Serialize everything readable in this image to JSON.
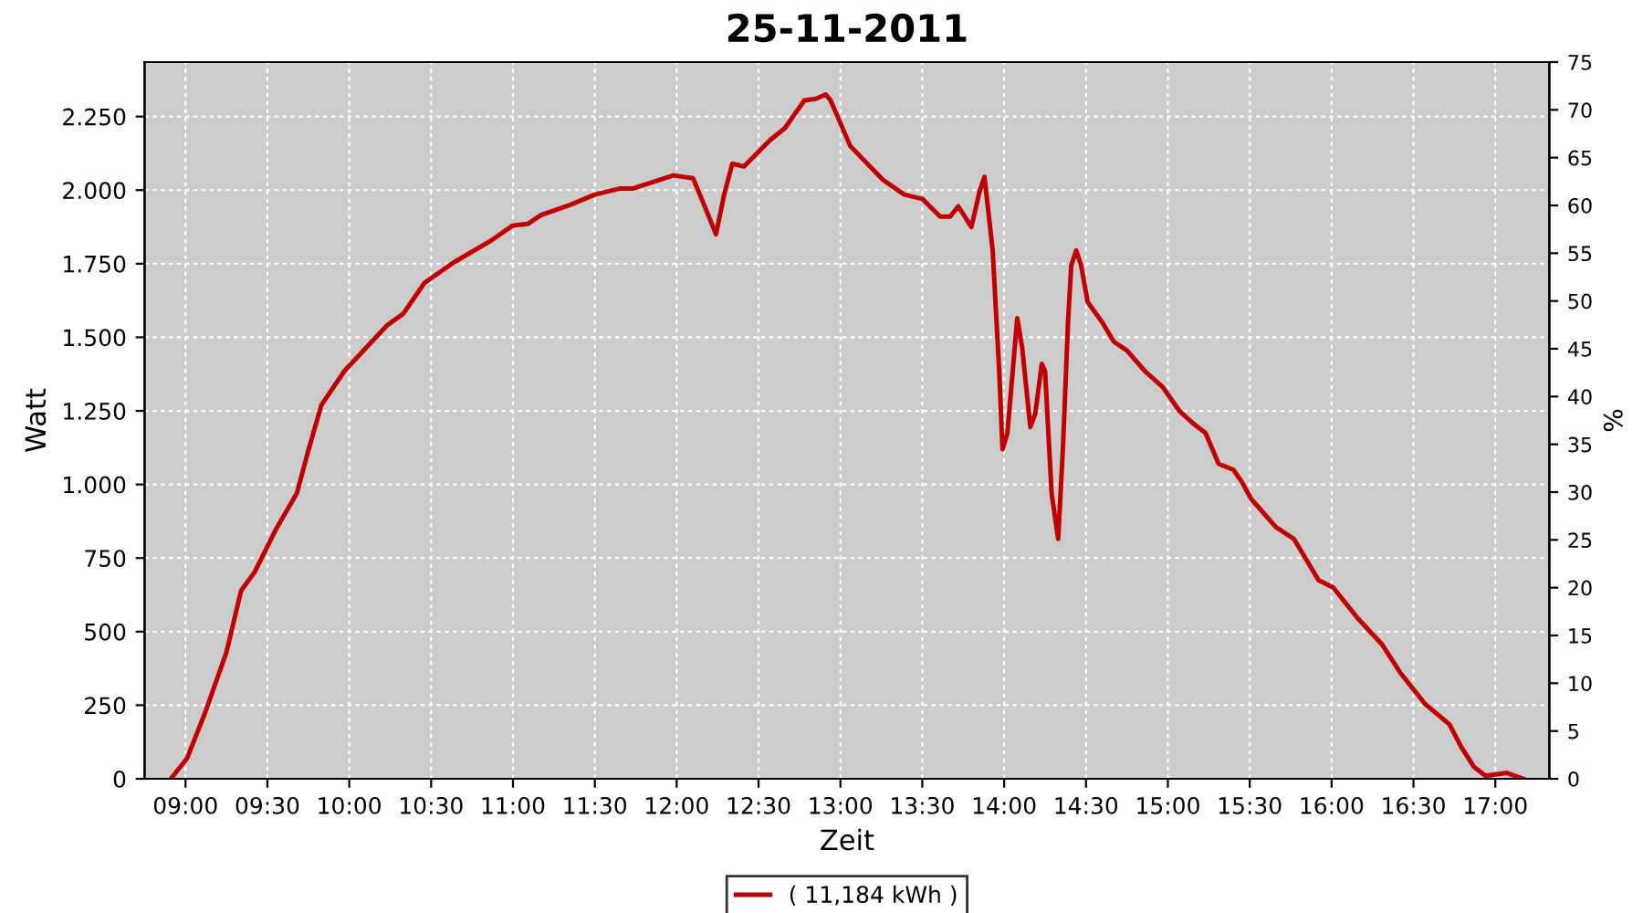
{
  "chart_data": {
    "type": "line",
    "title": "25-11-2011",
    "xlabel": "Zeit",
    "ylabel": "Watt",
    "y2label": "%",
    "xlim": [
      8.75,
      17.33
    ],
    "ylim": [
      0,
      2435
    ],
    "y2lim": [
      0,
      75
    ],
    "xticks": [
      {
        "value": 9,
        "label": "09:00"
      },
      {
        "value": 9.5,
        "label": "09:30"
      },
      {
        "value": 10,
        "label": "10:00"
      },
      {
        "value": 10.5,
        "label": "10:30"
      },
      {
        "value": 11,
        "label": "11:00"
      },
      {
        "value": 11.5,
        "label": "11:30"
      },
      {
        "value": 12,
        "label": "12:00"
      },
      {
        "value": 12.5,
        "label": "12:30"
      },
      {
        "value": 13,
        "label": "13:00"
      },
      {
        "value": 13.5,
        "label": "13:30"
      },
      {
        "value": 14,
        "label": "14:00"
      },
      {
        "value": 14.5,
        "label": "14:30"
      },
      {
        "value": 15,
        "label": "15:00"
      },
      {
        "value": 15.5,
        "label": "15:30"
      },
      {
        "value": 16,
        "label": "16:00"
      },
      {
        "value": 16.5,
        "label": "16:30"
      },
      {
        "value": 17,
        "label": "17:00"
      }
    ],
    "yticks": [
      0,
      250,
      500,
      750,
      {
        "value": 1000,
        "label": "1.000"
      },
      {
        "value": 1250,
        "label": "1.250"
      },
      {
        "value": 1500,
        "label": "1.500"
      },
      {
        "value": 1750,
        "label": "1.750"
      },
      {
        "value": 2000,
        "label": "2.000"
      },
      {
        "value": 2250,
        "label": "2.250"
      }
    ],
    "y2ticks": [
      0,
      5,
      10,
      15,
      20,
      25,
      30,
      35,
      40,
      45,
      50,
      55,
      60,
      65,
      70,
      75
    ],
    "grid": true,
    "legend": "bottom",
    "marker": "none",
    "line_style": "solid",
    "series": [
      {
        "name": "( 11,184 kWh )",
        "color": "#c00000",
        "x": [
          8.91,
          9.01,
          9.12,
          9.25,
          9.34,
          9.42,
          9.55,
          9.68,
          9.75,
          9.83,
          9.97,
          10.23,
          10.33,
          10.46,
          10.64,
          10.87,
          11.0,
          11.09,
          11.17,
          11.35,
          11.5,
          11.65,
          11.73,
          11.98,
          12.1,
          12.16,
          12.24,
          12.29,
          12.34,
          12.41,
          12.57,
          12.66,
          12.78,
          12.85,
          12.91,
          12.94,
          13.06,
          13.26,
          13.39,
          13.5,
          13.61,
          13.67,
          13.72,
          13.8,
          13.85,
          13.88,
          13.93,
          13.97,
          13.99,
          14.02,
          14.08,
          14.11,
          14.16,
          14.19,
          14.23,
          14.25,
          14.29,
          14.33,
          14.36,
          14.39,
          14.41,
          14.44,
          14.47,
          14.51,
          14.6,
          14.67,
          14.75,
          14.86,
          14.97,
          15.07,
          15.16,
          15.23,
          15.31,
          15.4,
          15.45,
          15.51,
          15.66,
          15.77,
          15.84,
          15.92,
          16.01,
          16.16,
          16.31,
          16.42,
          16.57,
          16.72,
          16.79,
          16.87,
          16.94,
          17.07,
          17.17
        ],
        "values": [
          0,
          70,
          225,
          430,
          640,
          700,
          845,
          970,
          1115,
          1270,
          1385,
          1540,
          1580,
          1685,
          1755,
          1830,
          1880,
          1885,
          1915,
          1950,
          1985,
          2005,
          2005,
          2050,
          2040,
          1960,
          1850,
          1985,
          2090,
          2080,
          2170,
          2210,
          2305,
          2310,
          2325,
          2305,
          2150,
          2035,
          1985,
          1970,
          1910,
          1910,
          1945,
          1875,
          1995,
          2045,
          1795,
          1385,
          1120,
          1175,
          1565,
          1465,
          1195,
          1240,
          1410,
          1385,
          970,
          815,
          1135,
          1550,
          1745,
          1795,
          1745,
          1620,
          1550,
          1485,
          1455,
          1385,
          1330,
          1250,
          1205,
          1175,
          1070,
          1050,
          1010,
          950,
          855,
          815,
          750,
          675,
          650,
          545,
          455,
          360,
          255,
          185,
          110,
          40,
          10,
          20,
          0
        ]
      }
    ]
  }
}
